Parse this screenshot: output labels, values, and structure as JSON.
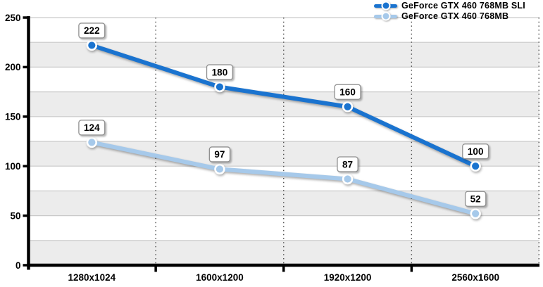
{
  "chart_data": {
    "type": "line",
    "title": "",
    "categories": [
      "1280x1024",
      "1600x1200",
      "1920x1200",
      "2560x1600"
    ],
    "series": [
      {
        "name": "GeForce GTX 460 768MB SLI",
        "values": [
          222,
          180,
          160,
          100
        ],
        "color": "#1a73cf"
      },
      {
        "name": "GeForce GTX 460 768MB",
        "values": [
          124,
          97,
          87,
          52
        ],
        "color": "#a6c9ea"
      }
    ],
    "xlabel": "",
    "ylabel": "",
    "ylim": [
      0,
      250
    ],
    "yticks": [
      0,
      50,
      100,
      150,
      200,
      250
    ],
    "band_step": 25,
    "grid": true,
    "legend_position": "top-right",
    "data_labels": true
  },
  "style": {
    "band_color": "#ececec",
    "gridline_color": "#c9c9c9",
    "divider_color": "#4c4c4c",
    "axis_color": "#000000",
    "label_box_bg": "#ffffff",
    "label_box_border": "#8f8f8f",
    "marker_ring": "#ffffff",
    "text_color": "#000000"
  }
}
